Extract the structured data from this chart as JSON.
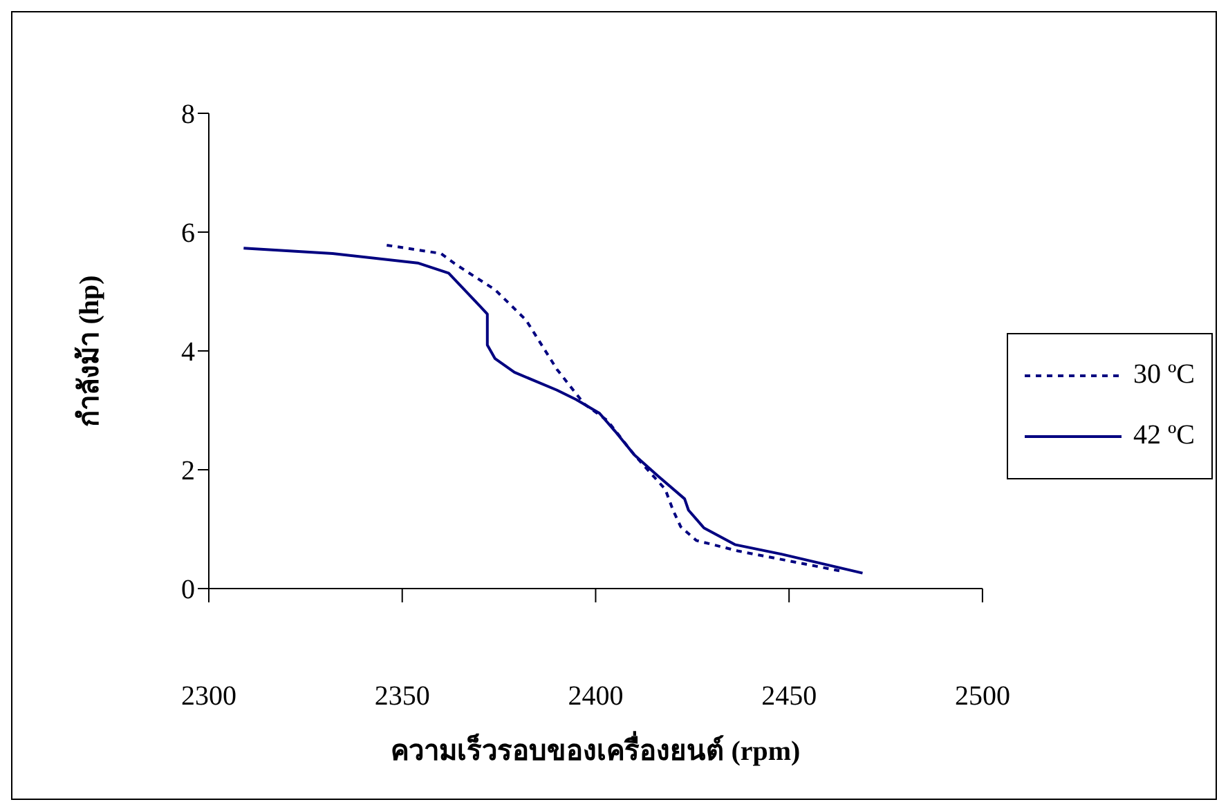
{
  "chart_data": {
    "type": "line",
    "xlabel": "ความเร็วรอบของเครื่องยนต์ (rpm)",
    "ylabel": "กำลังม้า (hp)",
    "xlim": [
      2300,
      2500
    ],
    "xticks": [
      2300,
      2350,
      2400,
      2450,
      2500
    ],
    "ylim": [
      0,
      8
    ],
    "yticks": [
      0,
      2,
      4,
      6,
      8
    ],
    "grid": false,
    "legend": "right",
    "marker": "none",
    "series": [
      {
        "name": "30 ºC",
        "color": "#000080",
        "line_style": "dashed",
        "x": [
          2346,
          2360,
          2364,
          2374,
          2382,
          2390,
          2397,
          2403,
          2410,
          2418,
          2420,
          2422,
          2426,
          2437,
          2452,
          2463
        ],
        "values": [
          5.78,
          5.64,
          5.45,
          5.03,
          4.52,
          3.69,
          3.11,
          2.83,
          2.25,
          1.67,
          1.32,
          1.04,
          0.81,
          0.63,
          0.44,
          0.3
        ]
      },
      {
        "name": "42 ºC",
        "color": "#000080",
        "line_style": "solid",
        "x": [
          2309,
          2332,
          2354,
          2362,
          2370,
          2372,
          2372,
          2374,
          2379,
          2390,
          2395,
          2401,
          2405,
          2410,
          2416,
          2423,
          2424,
          2428,
          2436,
          2448,
          2469
        ],
        "values": [
          5.73,
          5.64,
          5.48,
          5.31,
          4.76,
          4.62,
          4.1,
          3.87,
          3.64,
          3.34,
          3.18,
          2.95,
          2.65,
          2.25,
          1.9,
          1.51,
          1.32,
          1.02,
          0.74,
          0.58,
          0.26
        ]
      }
    ]
  }
}
